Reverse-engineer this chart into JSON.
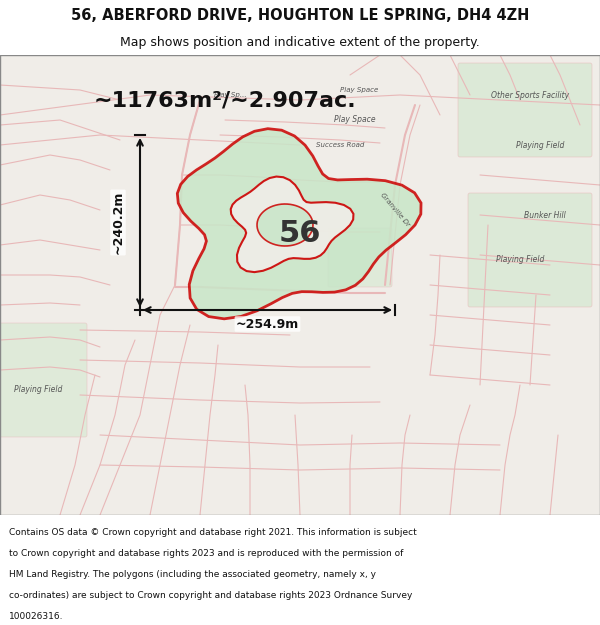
{
  "title_line1": "56, ABERFORD DRIVE, HOUGHTON LE SPRING, DH4 4ZH",
  "title_line2": "Map shows position and indicative extent of the property.",
  "area_text": "~11763m²/~2.907ac.",
  "width_label": "~254.9m",
  "height_label": "~240.2m",
  "property_number": "56",
  "footer_text": "Contains OS data © Crown copyright and database right 2021. This information is subject to Crown copyright and database rights 2023 and is reproduced with the permission of HM Land Registry. The polygons (including the associated geometry, namely x, y co-ordinates) are subject to Crown copyright and database rights 2023 Ordnance Survey 100026316.",
  "map_bg_color": "#f0ede8",
  "map_border_color": "#cccccc",
  "title_bg_color": "#ffffff",
  "footer_bg_color": "#ffffff",
  "road_color": "#e8b8b8",
  "property_fill": "#c8e6c8",
  "property_outline": "#cc0000",
  "dim_color": "#111111",
  "title_color": "#111111",
  "footer_color": "#111111"
}
